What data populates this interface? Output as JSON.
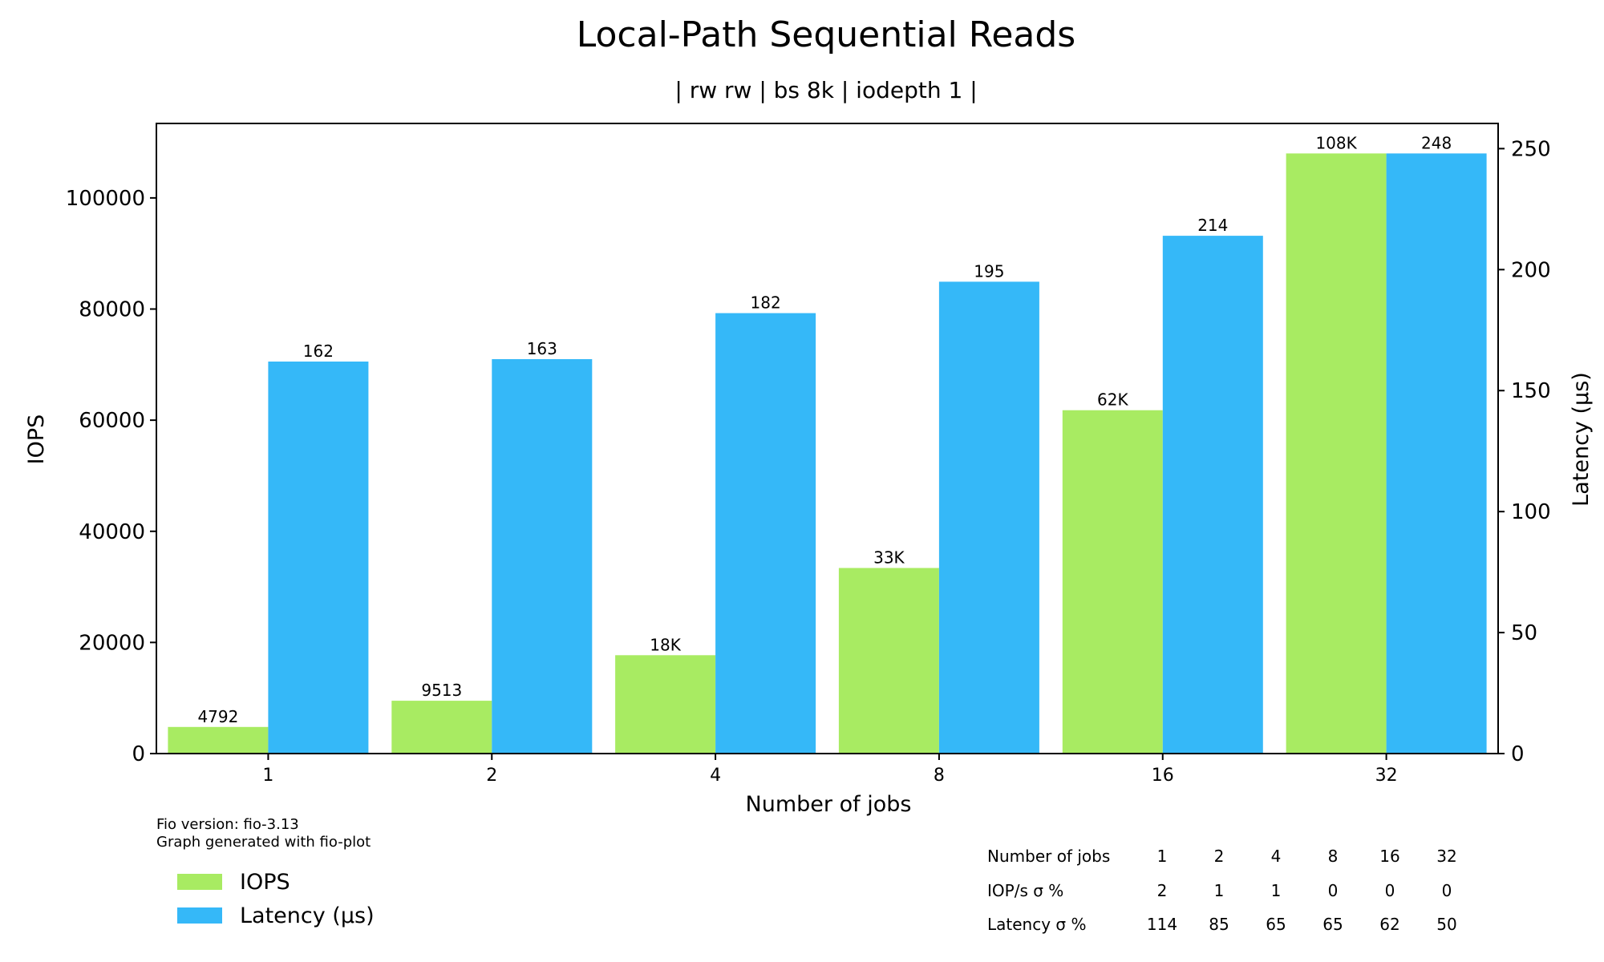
{
  "chart_data": {
    "type": "bar",
    "title": "Local-Path Sequential Reads",
    "subtitle": "| rw rw | bs 8k | iodepth 1 |",
    "xlabel": "Number of jobs",
    "ylabel_left": "IOPS",
    "ylabel_right": "Latency (µs)",
    "categories": [
      "1",
      "2",
      "4",
      "8",
      "16",
      "32"
    ],
    "ylim_left": [
      0,
      113400
    ],
    "ylim_right": [
      0,
      260.4
    ],
    "yticks_left": [
      0,
      20000,
      40000,
      60000,
      80000,
      100000
    ],
    "yticks_right": [
      0,
      50,
      100,
      150,
      200,
      250
    ],
    "grid": false,
    "legend_position": "bottom-left",
    "series": [
      {
        "name": "IOPS",
        "axis": "left",
        "color": "#a8eb62",
        "values": [
          4792,
          9513,
          17700,
          33400,
          61800,
          108000
        ],
        "labels": [
          "4792",
          "9513",
          "18K",
          "33K",
          "62K",
          "108K"
        ]
      },
      {
        "name": "Latency (µs)",
        "axis": "right",
        "color": "#35b8f8",
        "values": [
          162,
          163,
          182,
          195,
          214,
          248
        ],
        "labels": [
          "162",
          "163",
          "182",
          "195",
          "214",
          "248"
        ]
      }
    ]
  },
  "footer": {
    "line1": "Fio version: fio-3.13",
    "line2": "Graph generated with fio-plot"
  },
  "legend": {
    "iops_label": "IOPS",
    "latency_label": "Latency (µs)"
  },
  "stats_table": {
    "rows": [
      {
        "label": "Number of jobs",
        "values": [
          "1",
          "2",
          "4",
          "8",
          "16",
          "32"
        ]
      },
      {
        "label": "IOP/s σ %",
        "values": [
          "2",
          "1",
          "1",
          "0",
          "0",
          "0"
        ]
      },
      {
        "label": "Latency σ %",
        "values": [
          "114",
          "85",
          "65",
          "65",
          "62",
          "50"
        ]
      }
    ]
  }
}
